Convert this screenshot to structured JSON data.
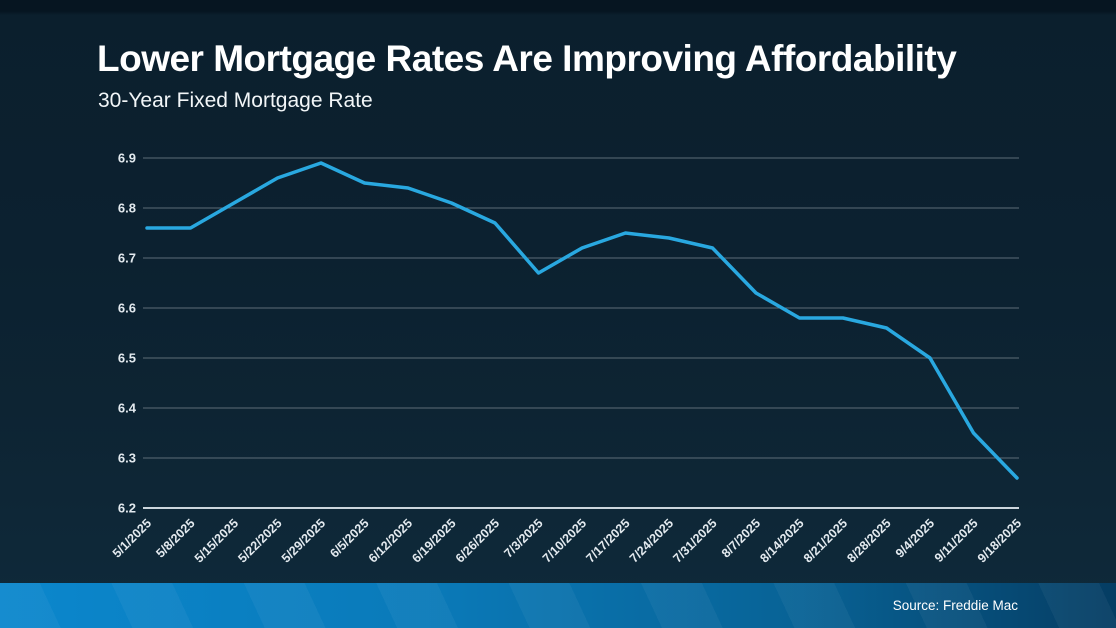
{
  "header": {
    "title": "Lower Mortgage Rates Are Improving Affordability",
    "subtitle": "30-Year Fixed Mortgage Rate"
  },
  "footer": {
    "source": "Source: Freddie Mac"
  },
  "colors": {
    "background_top": "#061521",
    "background_bottom": "#0f2a3b",
    "line": "#29A8E0",
    "gridline": "#5d6c77",
    "axis_line": "#ccd6dd",
    "tick_label": "#e3eaef",
    "title_text": "#ffffff",
    "footer_bar_left": "#0b87cd",
    "footer_bar_right": "#053d63",
    "footer_text": "#ffffff"
  },
  "chart_data": {
    "type": "line",
    "title": "30-Year Fixed Mortgage Rate",
    "series_name": "30-Year Fixed Mortgage Rate",
    "categories": [
      "5/1/2025",
      "5/8/2025",
      "5/15/2025",
      "5/22/2025",
      "5/29/2025",
      "6/5/2025",
      "6/12/2025",
      "6/19/2025",
      "6/26/2025",
      "7/3/2025",
      "7/10/2025",
      "7/17/2025",
      "7/24/2025",
      "7/31/2025",
      "8/7/2025",
      "8/14/2025",
      "8/21/2025",
      "8/28/2025",
      "9/4/2025",
      "9/11/2025",
      "9/18/2025"
    ],
    "values": [
      6.76,
      6.76,
      6.81,
      6.86,
      6.89,
      6.85,
      6.84,
      6.81,
      6.77,
      6.67,
      6.72,
      6.75,
      6.74,
      6.72,
      6.63,
      6.58,
      6.58,
      6.56,
      6.5,
      6.35,
      6.26
    ],
    "ylim": [
      6.2,
      6.9
    ],
    "ytick_step": 0.1,
    "ytick_format_decimals": 1,
    "xlabel": "",
    "ylabel": "",
    "grid": true,
    "legend_position": "none",
    "x_label_rotation": -45
  }
}
